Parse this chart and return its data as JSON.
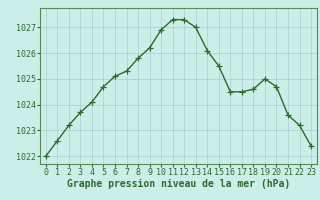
{
  "x": [
    0,
    1,
    2,
    3,
    4,
    5,
    6,
    7,
    8,
    9,
    10,
    11,
    12,
    13,
    14,
    15,
    16,
    17,
    18,
    19,
    20,
    21,
    22,
    23
  ],
  "y": [
    1022.0,
    1022.6,
    1023.2,
    1023.7,
    1024.1,
    1024.7,
    1025.1,
    1025.3,
    1025.8,
    1026.2,
    1026.9,
    1027.3,
    1027.3,
    1027.0,
    1026.1,
    1025.5,
    1024.5,
    1024.5,
    1024.6,
    1025.0,
    1024.7,
    1023.6,
    1023.2,
    1022.4
  ],
  "line_color": "#2d6a2d",
  "marker": "+",
  "markersize": 4,
  "linewidth": 1.0,
  "background_color": "#cceee8",
  "grid_color": "#aacccc",
  "ylim": [
    1021.7,
    1027.75
  ],
  "xlim": [
    -0.5,
    23.5
  ],
  "yticks": [
    1022,
    1023,
    1024,
    1025,
    1026,
    1027
  ],
  "xtick_labels": [
    "0",
    "1",
    "2",
    "3",
    "4",
    "5",
    "6",
    "7",
    "8",
    "9",
    "10",
    "11",
    "12",
    "13",
    "14",
    "15",
    "16",
    "17",
    "18",
    "19",
    "20",
    "21",
    "22",
    "23"
  ],
  "xlabel": "Graphe pression niveau de la mer (hPa)",
  "xlabel_fontsize": 7,
  "tick_fontsize": 6,
  "ytick_fontsize": 6,
  "spine_color": "#558855"
}
